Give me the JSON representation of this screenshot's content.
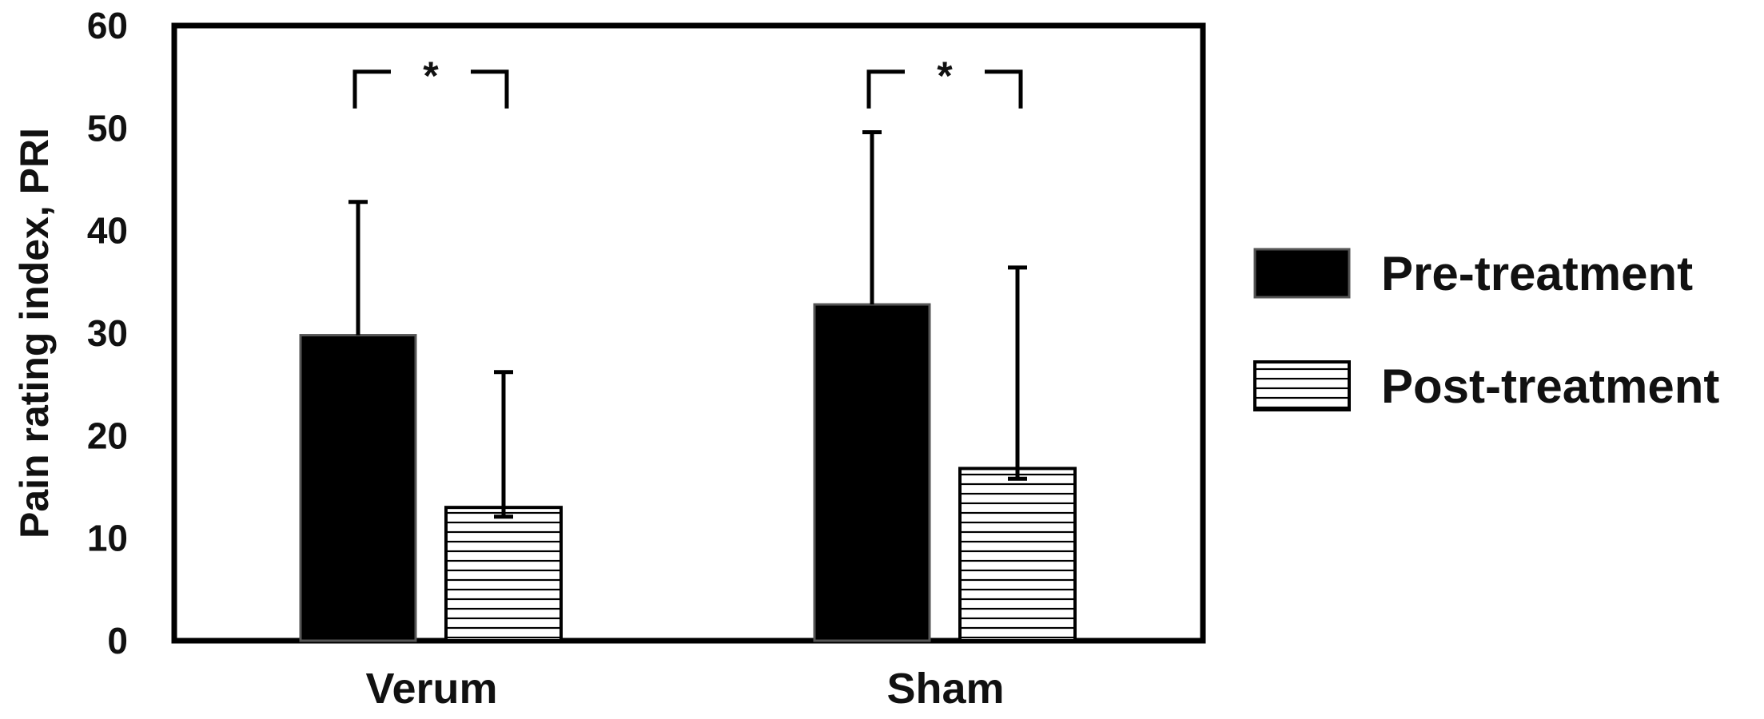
{
  "chart_data": {
    "type": "bar",
    "title": "",
    "xlabel": "",
    "ylabel": "Pain rating index, PRI",
    "ylim": [
      0,
      60
    ],
    "yticks": [
      0,
      10,
      20,
      30,
      40,
      50,
      60
    ],
    "grid": false,
    "legend_position": "right",
    "categories": [
      "Verum",
      "Sham"
    ],
    "series": [
      {
        "name": "Pre-treatment",
        "fill": "solid",
        "color": "#000000",
        "values": [
          29.8,
          32.8
        ],
        "error_plus": [
          13.0,
          16.8
        ]
      },
      {
        "name": "Post-treatment",
        "fill": "horizontal-stripes",
        "color": "#000000",
        "values": [
          13.0,
          16.8
        ],
        "error_plus": [
          13.2,
          19.6
        ],
        "error_minus": [
          0.9,
          1.0
        ]
      }
    ],
    "annotations": [
      {
        "text": "*",
        "category": "Verum",
        "level": 55
      },
      {
        "text": "*",
        "category": "Sham",
        "level": 55
      }
    ]
  }
}
